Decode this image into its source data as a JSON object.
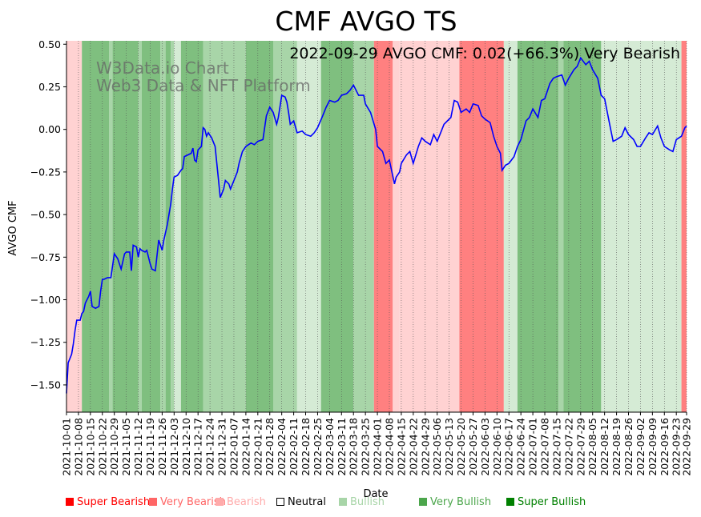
{
  "chart_data": {
    "type": "line",
    "title": "CMF AVGO TS",
    "subtitle": "2022-09-29 AVGO CMF: 0.02(+66.3%) Very Bearish",
    "watermark": [
      "W3Data.io Chart",
      "Web3 Data & NFT Platform"
    ],
    "xlabel": "Date",
    "ylabel": "AVGO CMF",
    "xlim": [
      "2021-10-01",
      "2022-09-29"
    ],
    "ylim": [
      -1.66,
      0.52
    ],
    "yticks": [
      0.5,
      0.25,
      0.0,
      -0.25,
      -0.5,
      -0.75,
      -1.0,
      -1.25,
      -1.5
    ],
    "ytick_labels": [
      "0.50",
      "0.25",
      "0.00",
      "−0.25",
      "−0.50",
      "−0.75",
      "−1.00",
      "−1.25",
      "−1.50"
    ],
    "xticks": [
      "2021-10-01",
      "2021-10-08",
      "2021-10-15",
      "2021-10-22",
      "2021-10-29",
      "2021-11-05",
      "2021-11-12",
      "2021-11-19",
      "2021-11-26",
      "2021-12-03",
      "2021-12-10",
      "2021-12-17",
      "2021-12-24",
      "2021-12-31",
      "2022-01-07",
      "2022-01-14",
      "2022-01-21",
      "2022-01-28",
      "2022-02-04",
      "2022-02-11",
      "2022-02-18",
      "2022-02-25",
      "2022-03-04",
      "2022-03-11",
      "2022-03-18",
      "2022-03-25",
      "2022-04-01",
      "2022-04-08",
      "2022-04-15",
      "2022-04-22",
      "2022-04-29",
      "2022-05-06",
      "2022-05-13",
      "2022-05-20",
      "2022-05-27",
      "2022-06-03",
      "2022-06-10",
      "2022-06-17",
      "2022-06-24",
      "2022-07-01",
      "2022-07-08",
      "2022-07-15",
      "2022-07-22",
      "2022-07-29",
      "2022-08-05",
      "2022-08-12",
      "2022-08-19",
      "2022-08-26",
      "2022-09-02",
      "2022-09-09",
      "2022-09-16",
      "2022-09-23",
      "2022-09-29"
    ],
    "series": [
      {
        "color": "#0000ff",
        "points": [
          [
            "2021-10-01",
            -1.55
          ],
          [
            "2021-10-02",
            -1.37
          ],
          [
            "2021-10-04",
            -1.32
          ],
          [
            "2021-10-05",
            -1.26
          ],
          [
            "2021-10-06",
            -1.18
          ],
          [
            "2021-10-07",
            -1.12
          ],
          [
            "2021-10-08",
            -1.12
          ],
          [
            "2021-10-09",
            -1.12
          ],
          [
            "2021-10-10",
            -1.08
          ],
          [
            "2021-10-11",
            -1.07
          ],
          [
            "2021-10-12",
            -1.02
          ],
          [
            "2021-10-13",
            -1.0
          ],
          [
            "2021-10-14",
            -0.98
          ],
          [
            "2021-10-15",
            -0.95
          ],
          [
            "2021-10-16",
            -1.04
          ],
          [
            "2021-10-18",
            -1.05
          ],
          [
            "2021-10-20",
            -1.04
          ],
          [
            "2021-10-21",
            -0.95
          ],
          [
            "2021-10-22",
            -0.88
          ],
          [
            "2021-10-23",
            -0.88
          ],
          [
            "2021-10-25",
            -0.87
          ],
          [
            "2021-10-27",
            -0.87
          ],
          [
            "2021-10-29",
            -0.73
          ],
          [
            "2021-10-31",
            -0.76
          ],
          [
            "2021-11-02",
            -0.82
          ],
          [
            "2021-11-04",
            -0.73
          ],
          [
            "2021-11-05",
            -0.72
          ],
          [
            "2021-11-07",
            -0.72
          ],
          [
            "2021-11-08",
            -0.83
          ],
          [
            "2021-11-09",
            -0.68
          ],
          [
            "2021-11-11",
            -0.69
          ],
          [
            "2021-11-12",
            -0.75
          ],
          [
            "2021-11-13",
            -0.7
          ],
          [
            "2021-11-14",
            -0.71
          ],
          [
            "2021-11-16",
            -0.72
          ],
          [
            "2021-11-17",
            -0.71
          ],
          [
            "2021-11-19",
            -0.79
          ],
          [
            "2021-11-20",
            -0.82
          ],
          [
            "2021-11-22",
            -0.83
          ],
          [
            "2021-11-24",
            -0.65
          ],
          [
            "2021-11-25",
            -0.68
          ],
          [
            "2021-11-26",
            -0.71
          ],
          [
            "2021-11-27",
            -0.65
          ],
          [
            "2021-11-29",
            -0.56
          ],
          [
            "2021-11-30",
            -0.5
          ],
          [
            "2021-12-01",
            -0.44
          ],
          [
            "2021-12-02",
            -0.35
          ],
          [
            "2021-12-03",
            -0.28
          ],
          [
            "2021-12-05",
            -0.27
          ],
          [
            "2021-12-07",
            -0.24
          ],
          [
            "2021-12-08",
            -0.23
          ],
          [
            "2021-12-09",
            -0.16
          ],
          [
            "2021-12-11",
            -0.15
          ],
          [
            "2021-12-13",
            -0.14
          ],
          [
            "2021-12-14",
            -0.11
          ],
          [
            "2021-12-15",
            -0.18
          ],
          [
            "2021-12-16",
            -0.19
          ],
          [
            "2021-12-17",
            -0.12
          ],
          [
            "2021-12-19",
            -0.1
          ],
          [
            "2021-12-20",
            0.01
          ],
          [
            "2021-12-21",
            0.0
          ],
          [
            "2021-12-22",
            -0.04
          ],
          [
            "2021-12-23",
            -0.02
          ],
          [
            "2021-12-25",
            -0.05
          ],
          [
            "2021-12-27",
            -0.1
          ],
          [
            "2021-12-29",
            -0.3
          ],
          [
            "2021-12-30",
            -0.4
          ],
          [
            "2022-01-01",
            -0.35
          ],
          [
            "2022-01-02",
            -0.3
          ],
          [
            "2022-01-04",
            -0.32
          ],
          [
            "2022-01-05",
            -0.35
          ],
          [
            "2022-01-07",
            -0.3
          ],
          [
            "2022-01-09",
            -0.25
          ],
          [
            "2022-01-10",
            -0.2
          ],
          [
            "2022-01-12",
            -0.13
          ],
          [
            "2022-01-14",
            -0.1
          ],
          [
            "2022-01-17",
            -0.08
          ],
          [
            "2022-01-19",
            -0.09
          ],
          [
            "2022-01-21",
            -0.07
          ],
          [
            "2022-01-24",
            -0.06
          ],
          [
            "2022-01-26",
            0.08
          ],
          [
            "2022-01-28",
            0.13
          ],
          [
            "2022-01-30",
            0.1
          ],
          [
            "2022-02-01",
            0.03
          ],
          [
            "2022-02-02",
            0.07
          ],
          [
            "2022-02-04",
            0.2
          ],
          [
            "2022-02-06",
            0.19
          ],
          [
            "2022-02-07",
            0.16
          ],
          [
            "2022-02-08",
            0.1
          ],
          [
            "2022-02-09",
            0.03
          ],
          [
            "2022-02-11",
            0.05
          ],
          [
            "2022-02-13",
            -0.02
          ],
          [
            "2022-02-16",
            -0.01
          ],
          [
            "2022-02-18",
            -0.03
          ],
          [
            "2022-02-21",
            -0.04
          ],
          [
            "2022-02-23",
            -0.02
          ],
          [
            "2022-02-25",
            0.01
          ],
          [
            "2022-02-28",
            0.08
          ],
          [
            "2022-03-02",
            0.13
          ],
          [
            "2022-03-04",
            0.17
          ],
          [
            "2022-03-07",
            0.16
          ],
          [
            "2022-03-09",
            0.17
          ],
          [
            "2022-03-11",
            0.2
          ],
          [
            "2022-03-14",
            0.21
          ],
          [
            "2022-03-16",
            0.23
          ],
          [
            "2022-03-18",
            0.26
          ],
          [
            "2022-03-21",
            0.2
          ],
          [
            "2022-03-24",
            0.2
          ],
          [
            "2022-03-25",
            0.15
          ],
          [
            "2022-03-28",
            0.1
          ],
          [
            "2022-03-31",
            0.0
          ],
          [
            "2022-04-01",
            -0.1
          ],
          [
            "2022-04-04",
            -0.13
          ],
          [
            "2022-04-06",
            -0.2
          ],
          [
            "2022-04-08",
            -0.18
          ],
          [
            "2022-04-11",
            -0.32
          ],
          [
            "2022-04-12",
            -0.28
          ],
          [
            "2022-04-14",
            -0.25
          ],
          [
            "2022-04-15",
            -0.2
          ],
          [
            "2022-04-18",
            -0.15
          ],
          [
            "2022-04-20",
            -0.13
          ],
          [
            "2022-04-22",
            -0.2
          ],
          [
            "2022-04-25",
            -0.1
          ],
          [
            "2022-04-27",
            -0.05
          ],
          [
            "2022-04-29",
            -0.07
          ],
          [
            "2022-05-02",
            -0.09
          ],
          [
            "2022-05-04",
            -0.03
          ],
          [
            "2022-05-06",
            -0.07
          ],
          [
            "2022-05-08",
            -0.02
          ],
          [
            "2022-05-10",
            0.03
          ],
          [
            "2022-05-12",
            0.05
          ],
          [
            "2022-05-14",
            0.07
          ],
          [
            "2022-05-16",
            0.17
          ],
          [
            "2022-05-18",
            0.16
          ],
          [
            "2022-05-20",
            0.1
          ],
          [
            "2022-05-23",
            0.12
          ],
          [
            "2022-05-25",
            0.1
          ],
          [
            "2022-05-27",
            0.15
          ],
          [
            "2022-05-30",
            0.14
          ],
          [
            "2022-06-01",
            0.08
          ],
          [
            "2022-06-03",
            0.06
          ],
          [
            "2022-06-06",
            0.04
          ],
          [
            "2022-06-08",
            -0.04
          ],
          [
            "2022-06-10",
            -0.1
          ],
          [
            "2022-06-12",
            -0.14
          ],
          [
            "2022-06-13",
            -0.24
          ],
          [
            "2022-06-15",
            -0.21
          ],
          [
            "2022-06-17",
            -0.2
          ],
          [
            "2022-06-20",
            -0.16
          ],
          [
            "2022-06-22",
            -0.1
          ],
          [
            "2022-06-24",
            -0.06
          ],
          [
            "2022-06-27",
            0.05
          ],
          [
            "2022-06-29",
            0.07
          ],
          [
            "2022-07-01",
            0.12
          ],
          [
            "2022-07-04",
            0.07
          ],
          [
            "2022-07-06",
            0.17
          ],
          [
            "2022-07-08",
            0.18
          ],
          [
            "2022-07-11",
            0.27
          ],
          [
            "2022-07-13",
            0.3
          ],
          [
            "2022-07-15",
            0.31
          ],
          [
            "2022-07-18",
            0.32
          ],
          [
            "2022-07-20",
            0.26
          ],
          [
            "2022-07-22",
            0.3
          ],
          [
            "2022-07-25",
            0.35
          ],
          [
            "2022-07-27",
            0.37
          ],
          [
            "2022-07-29",
            0.42
          ],
          [
            "2022-08-01",
            0.38
          ],
          [
            "2022-08-03",
            0.4
          ],
          [
            "2022-08-05",
            0.35
          ],
          [
            "2022-08-08",
            0.3
          ],
          [
            "2022-08-10",
            0.2
          ],
          [
            "2022-08-12",
            0.18
          ],
          [
            "2022-08-15",
            0.03
          ],
          [
            "2022-08-17",
            -0.07
          ],
          [
            "2022-08-19",
            -0.06
          ],
          [
            "2022-08-22",
            -0.04
          ],
          [
            "2022-08-24",
            0.01
          ],
          [
            "2022-08-26",
            -0.03
          ],
          [
            "2022-08-29",
            -0.06
          ],
          [
            "2022-08-31",
            -0.1
          ],
          [
            "2022-09-02",
            -0.1
          ],
          [
            "2022-09-05",
            -0.05
          ],
          [
            "2022-09-07",
            -0.02
          ],
          [
            "2022-09-09",
            -0.03
          ],
          [
            "2022-09-12",
            0.02
          ],
          [
            "2022-09-14",
            -0.05
          ],
          [
            "2022-09-16",
            -0.1
          ],
          [
            "2022-09-19",
            -0.12
          ],
          [
            "2022-09-21",
            -0.13
          ],
          [
            "2022-09-23",
            -0.06
          ],
          [
            "2022-09-26",
            -0.04
          ],
          [
            "2022-09-28",
            0.01
          ],
          [
            "2022-09-29",
            0.02
          ]
        ]
      }
    ],
    "grid": {
      "vertical_dotted": true,
      "horizontal": false
    },
    "background_bands": [
      {
        "from": "2021-10-01",
        "to": "2021-10-10",
        "state": "Bearish"
      },
      {
        "from": "2021-10-10",
        "to": "2021-10-26",
        "state": "Very Bullish"
      },
      {
        "from": "2021-10-26",
        "to": "2021-10-28",
        "state": "Bullish"
      },
      {
        "from": "2021-10-28",
        "to": "2021-11-12",
        "state": "Very Bullish"
      },
      {
        "from": "2021-11-12",
        "to": "2021-11-14",
        "state": "Bullish"
      },
      {
        "from": "2021-11-14",
        "to": "2021-11-25",
        "state": "Very Bullish"
      },
      {
        "from": "2021-11-25",
        "to": "2021-11-28",
        "state": "Bullish"
      },
      {
        "from": "2021-11-28",
        "to": "2021-12-01",
        "state": "Very Bullish"
      },
      {
        "from": "2021-12-01",
        "to": "2021-12-03",
        "state": "Bullish"
      },
      {
        "from": "2021-12-03",
        "to": "2021-12-07",
        "state": "Neutral"
      },
      {
        "from": "2021-12-07",
        "to": "2021-12-20",
        "state": "Very Bullish"
      },
      {
        "from": "2021-12-20",
        "to": "2022-01-14",
        "state": "Bullish"
      },
      {
        "from": "2022-01-14",
        "to": "2022-01-30",
        "state": "Very Bullish"
      },
      {
        "from": "2022-01-30",
        "to": "2022-02-13",
        "state": "Bullish"
      },
      {
        "from": "2022-02-13",
        "to": "2022-02-27",
        "state": "Neutral"
      },
      {
        "from": "2022-02-27",
        "to": "2022-03-18",
        "state": "Very Bullish"
      },
      {
        "from": "2022-03-18",
        "to": "2022-03-30",
        "state": "Bullish"
      },
      {
        "from": "2022-03-30",
        "to": "2022-04-10",
        "state": "Very Bearish"
      },
      {
        "from": "2022-04-10",
        "to": "2022-04-14",
        "state": "Bearish"
      },
      {
        "from": "2022-04-14",
        "to": "2022-05-19",
        "state": "Bearish"
      },
      {
        "from": "2022-05-19",
        "to": "2022-06-14",
        "state": "Very Bearish"
      },
      {
        "from": "2022-06-14",
        "to": "2022-06-22",
        "state": "Neutral"
      },
      {
        "from": "2022-06-22",
        "to": "2022-07-16",
        "state": "Very Bullish"
      },
      {
        "from": "2022-07-16",
        "to": "2022-07-19",
        "state": "Bullish"
      },
      {
        "from": "2022-07-19",
        "to": "2022-08-10",
        "state": "Very Bullish"
      },
      {
        "from": "2022-08-10",
        "to": "2022-09-26",
        "state": "Neutral"
      },
      {
        "from": "2022-09-26",
        "to": "2022-09-29",
        "state": "Very Bearish"
      }
    ],
    "legend": [
      {
        "label": "Super Bearish",
        "color": "#ff0000"
      },
      {
        "label": "Very Bearish",
        "color": "#ff6666"
      },
      {
        "label": "Bearish",
        "color": "#ffaaaa"
      },
      {
        "label": "Neutral",
        "color": "#ffffff"
      },
      {
        "label": "Bullish",
        "color": "#a8d5a8"
      },
      {
        "label": "Very Bullish",
        "color": "#4ca64c"
      },
      {
        "label": "Super Bullish",
        "color": "#008000"
      }
    ],
    "band_colors": {
      "Super Bearish": "#ff0000",
      "Very Bearish": "#ff8080",
      "Bearish": "#ffd2d2",
      "Neutral": "#d5ebd5",
      "Bullish": "#a8d5a8",
      "Very Bullish": "#7fbf7f",
      "Super Bullish": "#008000"
    },
    "legend_placement": "bottom"
  }
}
